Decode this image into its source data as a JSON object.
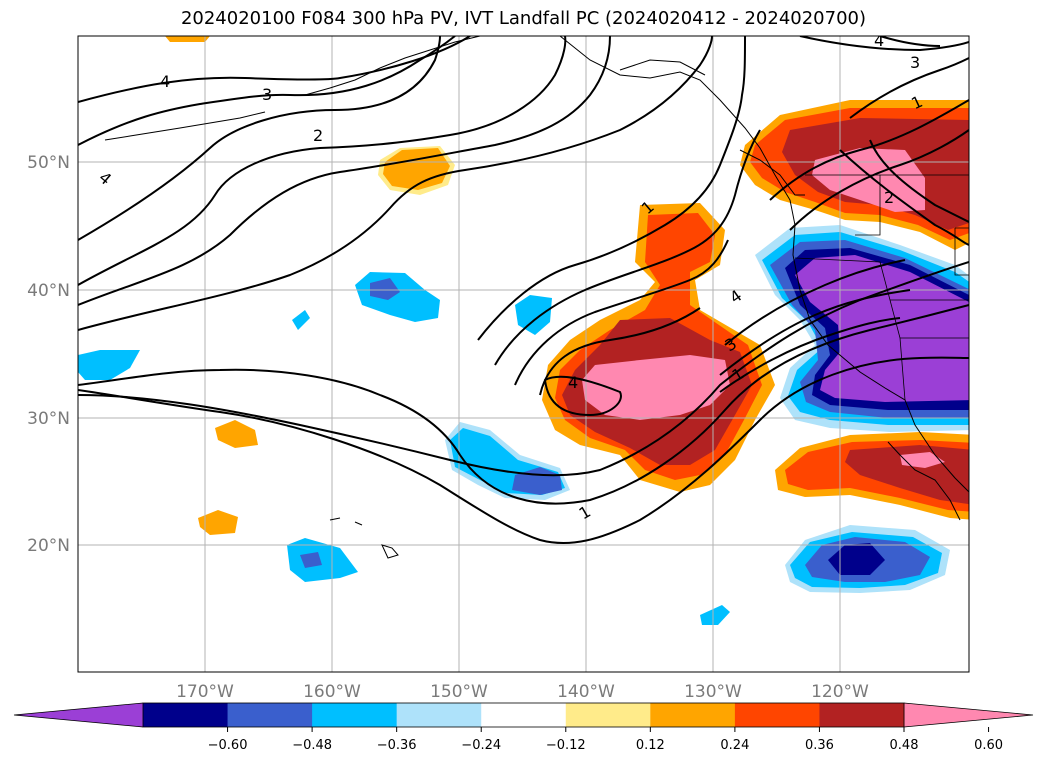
{
  "title": "2024020100 F084 300 hPa PV, IVT Landfall PC (2024020412 - 2024020700)",
  "map": {
    "lon_labels": [
      "170°W",
      "160°W",
      "150°W",
      "140°W",
      "130°W",
      "120°W"
    ],
    "lat_labels": [
      "50°N",
      "40°N",
      "30°N",
      "20°N"
    ],
    "grid": true
  },
  "contour_labels": [
    "4",
    "3",
    "2",
    "4",
    "1",
    "4",
    "3",
    "1",
    "4",
    "1",
    "2",
    "1",
    "3",
    "4"
  ],
  "colorbar": {
    "colors": [
      "#9b3fd6",
      "#00008b",
      "#3a5fcd",
      "#00bfff",
      "#aee2fa",
      "#ffffff",
      "#ffeb8a",
      "#ffa500",
      "#ff4500",
      "#b22222",
      "#ff88b0"
    ],
    "tick_labels": [
      "-0.60",
      "-0.48",
      "-0.36",
      "-0.24",
      "-0.12",
      "0.12",
      "0.24",
      "0.36",
      "0.48",
      "0.60"
    ],
    "extend": "both"
  }
}
